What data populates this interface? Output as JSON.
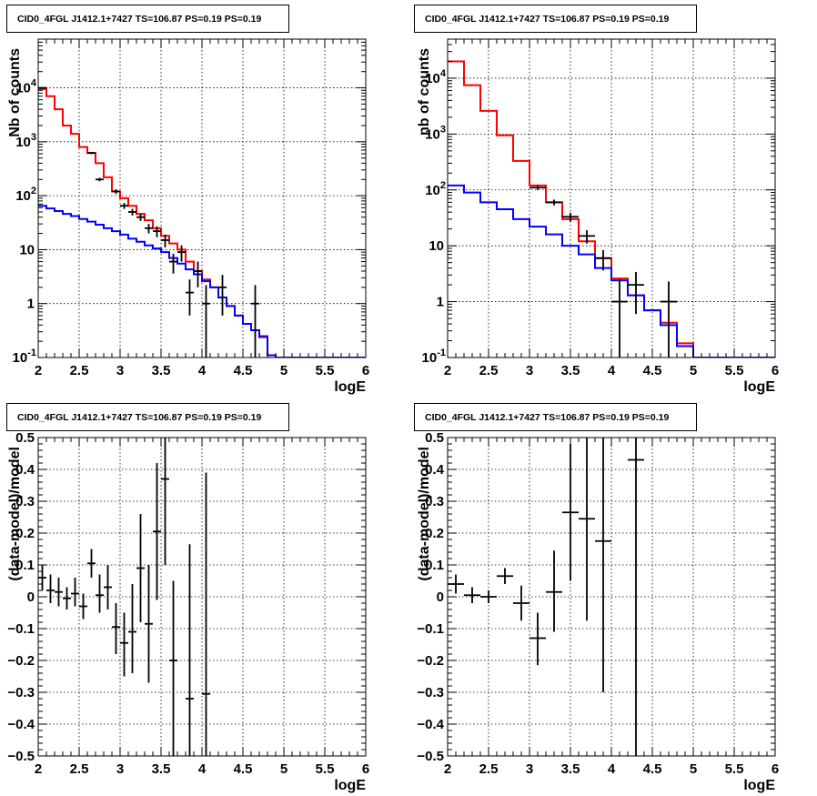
{
  "chart_data": [
    {
      "type": "histogram",
      "title": "CID0_4FGL J1412.1+7427 TS=106.87 PS=0.19 PS=0.19",
      "xlabel": "logE",
      "ylabel": "Nb of counts",
      "xlim": [
        2,
        6
      ],
      "ylim": [
        0.1,
        80000
      ],
      "yscale": "log",
      "grid": true,
      "xticks": [
        "2",
        "2.5",
        "3",
        "3.5",
        "4",
        "4.5",
        "5",
        "5.5",
        "6"
      ],
      "yticks": [
        {
          "v": 0.1,
          "label": "10",
          "sup": "-1"
        },
        {
          "v": 1,
          "label": "1",
          "sup": ""
        },
        {
          "v": 10,
          "label": "10",
          "sup": ""
        },
        {
          "v": 100,
          "label": "10",
          "sup": "2"
        },
        {
          "v": 1000,
          "label": "10",
          "sup": "3"
        },
        {
          "v": 10000,
          "label": "10",
          "sup": "4"
        }
      ],
      "bin_edges": [
        2.0,
        2.1,
        2.2,
        2.3,
        2.4,
        2.5,
        2.6,
        2.7,
        2.8,
        2.9,
        3.0,
        3.1,
        3.2,
        3.3,
        3.4,
        3.5,
        3.6,
        3.7,
        3.8,
        3.9,
        4.0,
        4.1,
        4.2,
        4.3,
        4.4,
        4.5,
        4.6,
        4.7,
        4.8,
        4.9,
        5.0,
        5.1,
        5.2,
        5.3,
        5.4,
        5.5,
        5.6,
        5.7,
        5.8,
        5.9,
        6.0
      ],
      "series": [
        {
          "kind": "step",
          "color": "#ff0000",
          "values": [
            9500,
            7000,
            4000,
            2000,
            1400,
            800,
            620,
            400,
            220,
            120,
            90,
            65,
            46,
            35,
            25,
            18,
            13,
            10,
            6,
            4,
            2.8,
            2.0,
            1.3,
            0.9,
            0.6,
            0.42,
            0.32,
            0.25,
            0.11,
            0.1,
            0.1,
            0.1,
            0.1,
            0.1,
            0.1,
            0.1,
            0.1,
            0.1,
            0.1,
            0.1
          ]
        },
        {
          "kind": "step",
          "color": "#0000ff",
          "values": [
            65,
            58,
            52,
            46,
            42,
            37,
            33,
            29,
            25,
            22,
            19,
            16,
            14,
            12,
            10.5,
            9,
            7,
            5.5,
            4.3,
            3.5,
            2.6,
            2.0,
            1.3,
            0.9,
            0.6,
            0.42,
            0.32,
            0.24,
            0.11,
            0.1,
            0.1,
            0.1,
            0.1,
            0.1,
            0.1,
            0.1,
            0.1,
            0.1,
            0.1,
            0.1
          ]
        },
        {
          "kind": "points",
          "color": "#000000",
          "points": [
            {
              "x": 2.05,
              "y": 10000,
              "lo": 9800,
              "hi": 10200,
              "dx": 0.05
            },
            {
              "x": 2.65,
              "y": 620,
              "lo": 590,
              "hi": 650,
              "dx": 0.05
            },
            {
              "x": 2.75,
              "y": 200,
              "lo": 185,
              "hi": 215,
              "dx": 0.05
            },
            {
              "x": 2.95,
              "y": 120,
              "lo": 108,
              "hi": 132,
              "dx": 0.05
            },
            {
              "x": 3.05,
              "y": 65,
              "lo": 57,
              "hi": 73,
              "dx": 0.05
            },
            {
              "x": 3.15,
              "y": 50,
              "lo": 43,
              "hi": 57,
              "dx": 0.05
            },
            {
              "x": 3.25,
              "y": 40,
              "lo": 34,
              "hi": 46,
              "dx": 0.05
            },
            {
              "x": 3.35,
              "y": 25,
              "lo": 20,
              "hi": 30,
              "dx": 0.05
            },
            {
              "x": 3.45,
              "y": 22,
              "lo": 17,
              "hi": 27,
              "dx": 0.05
            },
            {
              "x": 3.55,
              "y": 15,
              "lo": 11,
              "hi": 19,
              "dx": 0.05
            },
            {
              "x": 3.65,
              "y": 6,
              "lo": 3.6,
              "hi": 8.4,
              "dx": 0.05
            },
            {
              "x": 3.75,
              "y": 9,
              "lo": 6,
              "hi": 12,
              "dx": 0.05
            },
            {
              "x": 3.85,
              "y": 1.6,
              "lo": 0.6,
              "hi": 2.8,
              "dx": 0.05
            },
            {
              "x": 3.95,
              "y": 4,
              "lo": 2,
              "hi": 6,
              "dx": 0.05
            },
            {
              "x": 4.05,
              "y": 1,
              "lo": 0.1,
              "hi": 2.2,
              "dx": 0.05
            },
            {
              "x": 4.25,
              "y": 2,
              "lo": 0.6,
              "hi": 3.4,
              "dx": 0.05
            },
            {
              "x": 4.65,
              "y": 1,
              "lo": 0.1,
              "hi": 2.2,
              "dx": 0.05
            }
          ]
        }
      ]
    },
    {
      "type": "histogram",
      "title": "CID0_4FGL J1412.1+7427 TS=106.87 PS=0.19 PS=0.19",
      "xlabel": "logE",
      "ylabel": "nb of counts",
      "xlim": [
        2,
        6
      ],
      "ylim": [
        0.1,
        50000
      ],
      "yscale": "log",
      "grid": true,
      "xticks": [
        "2",
        "2.5",
        "3",
        "3.5",
        "4",
        "4.5",
        "5",
        "5.5",
        "6"
      ],
      "yticks": [
        {
          "v": 0.1,
          "label": "10",
          "sup": "-1"
        },
        {
          "v": 1,
          "label": "1",
          "sup": ""
        },
        {
          "v": 10,
          "label": "10",
          "sup": ""
        },
        {
          "v": 100,
          "label": "10",
          "sup": "2"
        },
        {
          "v": 1000,
          "label": "10",
          "sup": "3"
        },
        {
          "v": 10000,
          "label": "10",
          "sup": "4"
        }
      ],
      "bin_edges": [
        2.0,
        2.2,
        2.4,
        2.6,
        2.8,
        3.0,
        3.2,
        3.4,
        3.6,
        3.8,
        4.0,
        4.2,
        4.4,
        4.6,
        4.8,
        5.0,
        5.2,
        5.4,
        5.6,
        5.8,
        6.0
      ],
      "series": [
        {
          "kind": "step",
          "color": "#ff0000",
          "values": [
            20000,
            7500,
            2600,
            950,
            330,
            120,
            60,
            30,
            12,
            6,
            2.6,
            1.3,
            0.7,
            0.42,
            0.18,
            0.1,
            0.1,
            0.1,
            0.1,
            0.1
          ]
        },
        {
          "kind": "step",
          "color": "#0000ff",
          "values": [
            120,
            90,
            60,
            45,
            30,
            22,
            16,
            10,
            7,
            4,
            2.4,
            1.3,
            0.7,
            0.38,
            0.16,
            0.1,
            0.1,
            0.1,
            0.1,
            0.1
          ]
        },
        {
          "kind": "points",
          "color": "#000000",
          "points": [
            {
              "x": 3.1,
              "y": 110,
              "lo": 100,
              "hi": 120,
              "dx": 0.1
            },
            {
              "x": 3.3,
              "y": 60,
              "lo": 53,
              "hi": 67,
              "dx": 0.1
            },
            {
              "x": 3.5,
              "y": 33,
              "lo": 27,
              "hi": 39,
              "dx": 0.1
            },
            {
              "x": 3.7,
              "y": 15,
              "lo": 11,
              "hi": 19,
              "dx": 0.1
            },
            {
              "x": 3.9,
              "y": 6,
              "lo": 3.6,
              "hi": 8.4,
              "dx": 0.1
            },
            {
              "x": 4.1,
              "y": 1,
              "lo": 0.1,
              "hi": 2.5,
              "dx": 0.1
            },
            {
              "x": 4.3,
              "y": 2,
              "lo": 0.6,
              "hi": 3.4,
              "dx": 0.1
            },
            {
              "x": 4.7,
              "y": 1,
              "lo": 0.1,
              "hi": 2.3,
              "dx": 0.1
            }
          ]
        }
      ]
    },
    {
      "type": "scatter",
      "title": "CID0_4FGL J1412.1+7427 TS=106.87 PS=0.19 PS=0.19",
      "xlabel": "logE",
      "ylabel": "(data-model)/model",
      "xlim": [
        2,
        6
      ],
      "ylim": [
        -0.5,
        0.5
      ],
      "yscale": "linear",
      "grid": true,
      "xticks": [
        "2",
        "2.5",
        "3",
        "3.5",
        "4",
        "4.5",
        "5",
        "5.5",
        "6"
      ],
      "yticks": [
        {
          "v": -0.5,
          "label": "−0.5"
        },
        {
          "v": -0.4,
          "label": "−0.4"
        },
        {
          "v": -0.3,
          "label": "−0.3"
        },
        {
          "v": -0.2,
          "label": "−0.2"
        },
        {
          "v": -0.1,
          "label": "−0.1"
        },
        {
          "v": 0,
          "label": "0"
        },
        {
          "v": 0.1,
          "label": "0.1"
        },
        {
          "v": 0.2,
          "label": "0.2"
        },
        {
          "v": 0.3,
          "label": "0.3"
        },
        {
          "v": 0.4,
          "label": "0.4"
        },
        {
          "v": 0.5,
          "label": "0.5"
        }
      ],
      "series": [
        {
          "kind": "points",
          "color": "#000000",
          "points": [
            {
              "x": 2.05,
              "y": 0.06,
              "lo": 0.02,
              "hi": 0.1,
              "dx": 0.05
            },
            {
              "x": 2.15,
              "y": 0.02,
              "lo": -0.02,
              "hi": 0.07,
              "dx": 0.05
            },
            {
              "x": 2.25,
              "y": 0.015,
              "lo": -0.03,
              "hi": 0.06,
              "dx": 0.05
            },
            {
              "x": 2.35,
              "y": -0.005,
              "lo": -0.04,
              "hi": 0.03,
              "dx": 0.05
            },
            {
              "x": 2.45,
              "y": 0.01,
              "lo": -0.03,
              "hi": 0.06,
              "dx": 0.05
            },
            {
              "x": 2.55,
              "y": -0.03,
              "lo": -0.07,
              "hi": 0.01,
              "dx": 0.05
            },
            {
              "x": 2.65,
              "y": 0.105,
              "lo": 0.06,
              "hi": 0.15,
              "dx": 0.05
            },
            {
              "x": 2.75,
              "y": 0.005,
              "lo": -0.05,
              "hi": 0.07,
              "dx": 0.05
            },
            {
              "x": 2.85,
              "y": 0.03,
              "lo": -0.04,
              "hi": 0.1,
              "dx": 0.05
            },
            {
              "x": 2.95,
              "y": -0.095,
              "lo": -0.18,
              "hi": -0.02,
              "dx": 0.05
            },
            {
              "x": 3.05,
              "y": -0.145,
              "lo": -0.25,
              "hi": -0.05,
              "dx": 0.05
            },
            {
              "x": 3.15,
              "y": -0.11,
              "lo": -0.24,
              "hi": 0.04,
              "dx": 0.05
            },
            {
              "x": 3.25,
              "y": 0.09,
              "lo": -0.08,
              "hi": 0.26,
              "dx": 0.05
            },
            {
              "x": 3.35,
              "y": -0.085,
              "lo": -0.27,
              "hi": 0.1,
              "dx": 0.05
            },
            {
              "x": 3.45,
              "y": 0.205,
              "lo": -0.01,
              "hi": 0.42,
              "dx": 0.05
            },
            {
              "x": 3.55,
              "y": 0.37,
              "lo": 0.1,
              "hi": 0.5,
              "dx": 0.05
            },
            {
              "x": 3.65,
              "y": -0.2,
              "lo": -0.5,
              "hi": 0.05,
              "dx": 0.05
            },
            {
              "x": 3.85,
              "y": -0.32,
              "lo": -0.5,
              "hi": 0.165,
              "dx": 0.05
            },
            {
              "x": 4.05,
              "y": -0.305,
              "lo": -0.5,
              "hi": 0.39,
              "dx": 0.05
            }
          ]
        }
      ]
    },
    {
      "type": "scatter",
      "title": "CID0_4FGL J1412.1+7427 TS=106.87 PS=0.19 PS=0.19",
      "xlabel": "logE",
      "ylabel": "(data-model)/model",
      "xlim": [
        2,
        6
      ],
      "ylim": [
        -0.5,
        0.5
      ],
      "yscale": "linear",
      "grid": true,
      "xticks": [
        "2",
        "2.5",
        "3",
        "3.5",
        "4",
        "4.5",
        "5",
        "5.5",
        "6"
      ],
      "yticks": [
        {
          "v": -0.5,
          "label": "−0.5"
        },
        {
          "v": -0.4,
          "label": "−0.4"
        },
        {
          "v": -0.3,
          "label": "−0.3"
        },
        {
          "v": -0.2,
          "label": "−0.2"
        },
        {
          "v": -0.1,
          "label": "−0.1"
        },
        {
          "v": 0,
          "label": "0"
        },
        {
          "v": 0.1,
          "label": "0.1"
        },
        {
          "v": 0.2,
          "label": "0.2"
        },
        {
          "v": 0.3,
          "label": "0.3"
        },
        {
          "v": 0.4,
          "label": "0.4"
        },
        {
          "v": 0.5,
          "label": "0.5"
        }
      ],
      "series": [
        {
          "kind": "points",
          "color": "#000000",
          "points": [
            {
              "x": 2.1,
              "y": 0.04,
              "lo": 0.01,
              "hi": 0.07,
              "dx": 0.1
            },
            {
              "x": 2.3,
              "y": 0.005,
              "lo": -0.02,
              "hi": 0.03,
              "dx": 0.1
            },
            {
              "x": 2.5,
              "y": 0.0,
              "lo": -0.02,
              "hi": 0.02,
              "dx": 0.1
            },
            {
              "x": 2.7,
              "y": 0.065,
              "lo": 0.04,
              "hi": 0.09,
              "dx": 0.1
            },
            {
              "x": 2.9,
              "y": -0.02,
              "lo": -0.075,
              "hi": 0.035,
              "dx": 0.1
            },
            {
              "x": 3.1,
              "y": -0.13,
              "lo": -0.215,
              "hi": -0.05,
              "dx": 0.1
            },
            {
              "x": 3.3,
              "y": 0.015,
              "lo": -0.11,
              "hi": 0.145,
              "dx": 0.1
            },
            {
              "x": 3.5,
              "y": 0.265,
              "lo": 0.05,
              "hi": 0.48,
              "dx": 0.1
            },
            {
              "x": 3.7,
              "y": 0.245,
              "lo": -0.075,
              "hi": 0.5,
              "dx": 0.1
            },
            {
              "x": 3.9,
              "y": 0.175,
              "lo": -0.3,
              "hi": 0.5,
              "dx": 0.1
            },
            {
              "x": 4.3,
              "y": 0.43,
              "lo": -0.5,
              "hi": 0.5,
              "dx": 0.1
            }
          ]
        }
      ]
    }
  ]
}
